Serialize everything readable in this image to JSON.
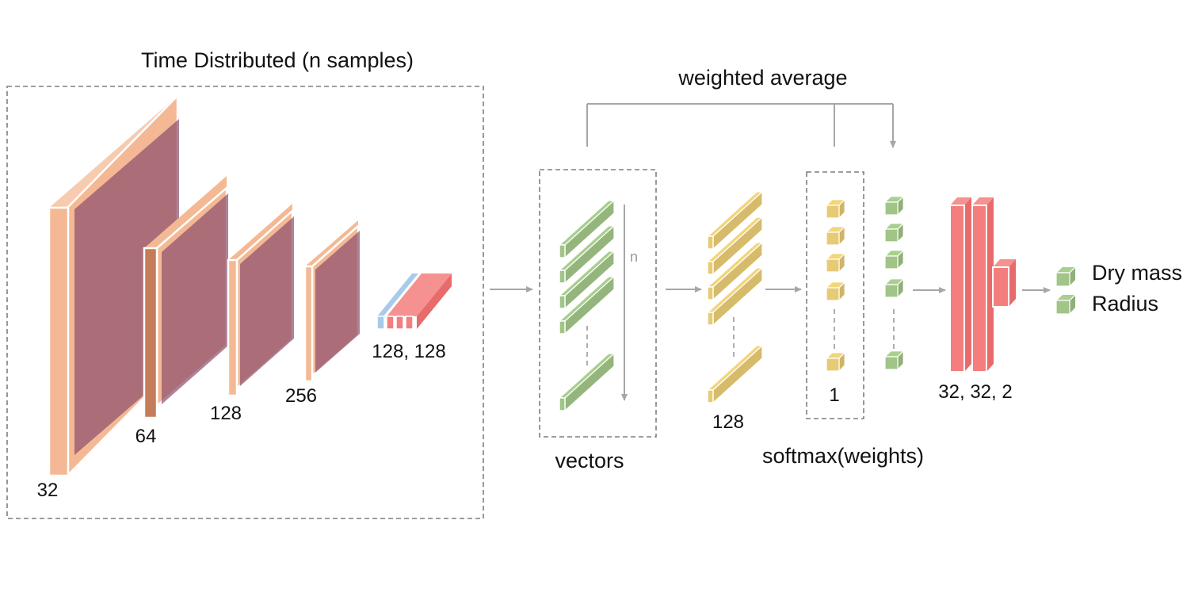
{
  "labels": {
    "time_distributed": "Time Distributed (n samples)",
    "weighted_average": "weighted average",
    "vectors": "vectors",
    "softmax": "softmax(weights)",
    "n": "n",
    "conv_1": "32",
    "conv_2": "64",
    "conv_3": "128",
    "conv_4": "256",
    "dense_pair": "128, 128",
    "vector_size": "128",
    "weight_size": "1",
    "dense_head": "32, 32, 2",
    "output_1": "Dry mass",
    "output_2": "Radius"
  },
  "colors": {
    "conv_face": "#f4b994",
    "conv_overlay": "#8c4f6c",
    "vector_green": "#a8cf8e",
    "vector_yellow": "#f3d57a",
    "dense_red": "#f47e7e",
    "dense_blue": "#a9cbea",
    "line_gray": "#a6a6a6",
    "dash_gray": "#7f7f7f"
  },
  "outputs": [
    "Dry mass",
    "Radius"
  ]
}
